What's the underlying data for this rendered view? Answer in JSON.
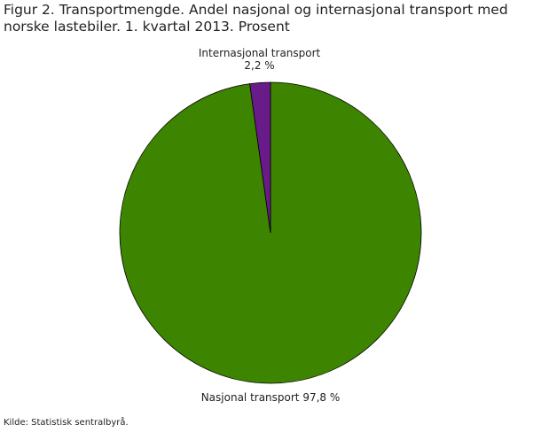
{
  "chart_data": {
    "type": "pie",
    "title": "Figur 2. Transportmengde. Andel nasjonal og internasjonal transport med norske lastebiler. 1. kvartal 2013. Prosent",
    "categories": [
      "Nasjonal transport",
      "Internasjonal transport"
    ],
    "values": [
      97.8,
      2.2
    ],
    "value_labels": [
      "97,8 %",
      "2,2 %"
    ],
    "colors": [
      "#3d8500",
      "#6a1b8a"
    ],
    "source": "Kilde: Statistisk sentralbyrå."
  }
}
